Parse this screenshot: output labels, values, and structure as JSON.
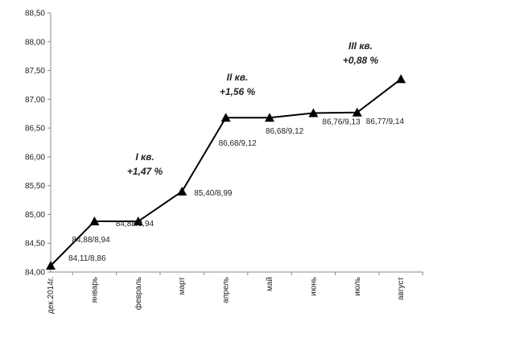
{
  "chart_data": {
    "type": "line",
    "categories": [
      "дек.2014г.",
      "январь",
      "февраль",
      "март",
      "апрель",
      "май",
      "июнь",
      "июль",
      "август"
    ],
    "values": [
      84.11,
      84.88,
      84.88,
      85.4,
      86.68,
      86.68,
      86.76,
      86.77,
      87.35
    ],
    "value_labels": [
      "84,11/8,86",
      "84,88/8,94",
      "84,88/8,94",
      "85,40/8,99",
      "86,68/9,12",
      "86,68/9,12",
      "86,76/9,13",
      "86,77/9,14",
      null
    ],
    "color": "#000000",
    "ylim": [
      84,
      88.5
    ],
    "yticks": [
      {
        "value": 84,
        "label": "84,00"
      },
      {
        "value": 84.5,
        "label": "84,50"
      },
      {
        "value": 85,
        "label": "85,00"
      },
      {
        "value": 85.5,
        "label": "85,50"
      },
      {
        "value": 86,
        "label": "86,00"
      },
      {
        "value": 86.5,
        "label": "86,50"
      },
      {
        "value": 87,
        "label": "87,00"
      },
      {
        "value": 87.5,
        "label": "87,50"
      },
      {
        "value": 88,
        "label": "88,00"
      },
      {
        "value": 88.5,
        "label": "88,50"
      }
    ],
    "grid": false,
    "annotations": [
      [
        "I кв.",
        "+1,47 %"
      ],
      [
        "II кв.",
        "+1,56 %"
      ],
      [
        "III кв.",
        "+0,88 %"
      ]
    ]
  }
}
